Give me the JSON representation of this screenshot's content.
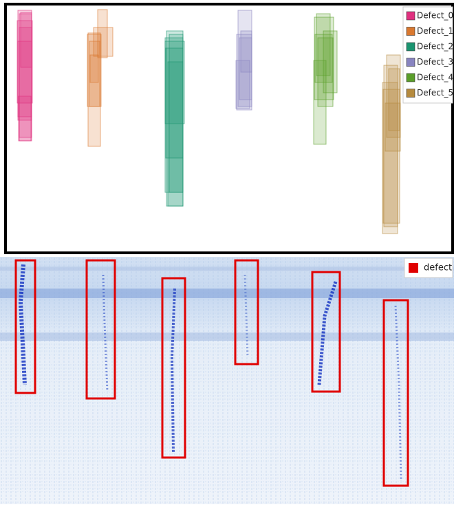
{
  "top_panel": {
    "legend": [
      {
        "label": "Defect_0",
        "color": "#e0307f"
      },
      {
        "label": "Defect_1",
        "color": "#d9782f"
      },
      {
        "label": "Defect_2",
        "color": "#1a9470"
      },
      {
        "label": "Defect_3",
        "color": "#8884c0"
      },
      {
        "label": "Defect_4",
        "color": "#5a9e2a"
      },
      {
        "label": "Defect_5",
        "color": "#b58a3e"
      }
    ]
  },
  "bottom_panel": {
    "legend": [
      {
        "label": "defect",
        "color": "#e00000"
      }
    ]
  }
}
